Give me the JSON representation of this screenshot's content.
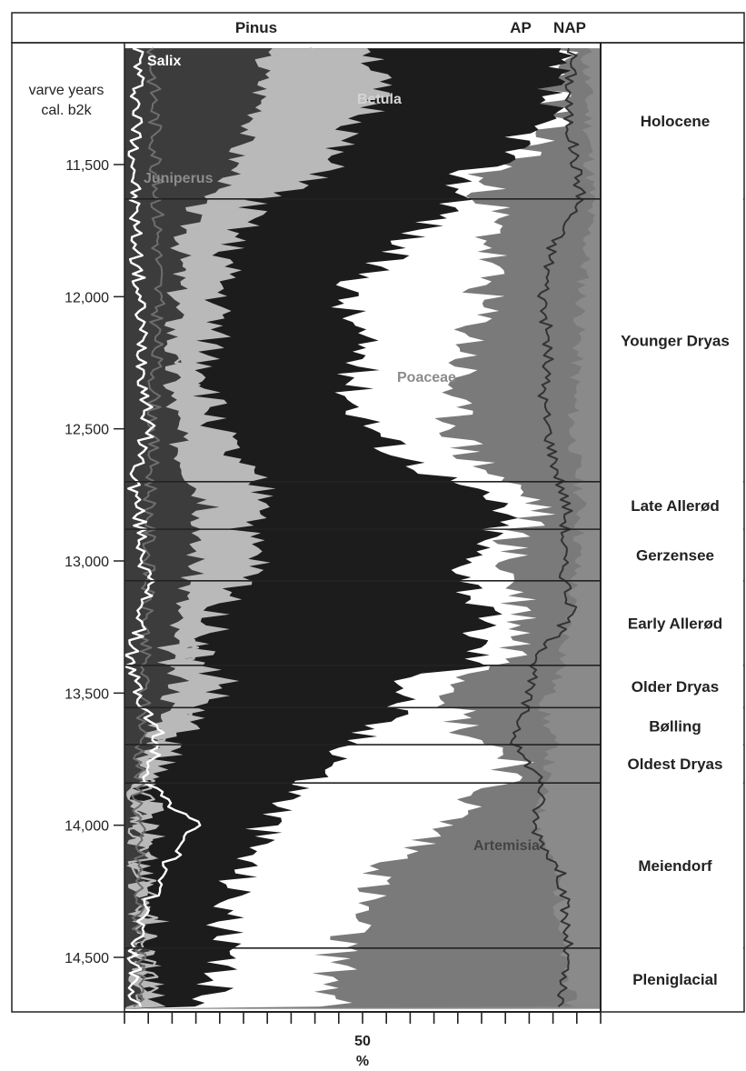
{
  "chart_data": {
    "type": "area",
    "header": {
      "left": "Pinus",
      "ap": "AP",
      "nap": "NAP"
    },
    "y_axis_label_line1": "varve years",
    "y_axis_label_line2": "cal. b2k",
    "y_ticks": [
      {
        "value": 11500,
        "label": "11,500"
      },
      {
        "value": 12000,
        "label": "12,000"
      },
      {
        "value": 12500,
        "label": "12,500"
      },
      {
        "value": 13000,
        "label": "13,000"
      },
      {
        "value": 13500,
        "label": "13,500"
      },
      {
        "value": 14000,
        "label": "14,000"
      },
      {
        "value": 14500,
        "label": "14,500"
      }
    ],
    "ylim": [
      11040,
      14700
    ],
    "x_axis": {
      "min": 0,
      "max": 100,
      "tick_step": 5,
      "label_value": 50,
      "label": "50",
      "unit": "%"
    },
    "taxon_labels": {
      "salix": "Salix",
      "betula": "Betula",
      "juniperus": "Juniperus",
      "poaceae": "Poaceae",
      "artemisia": "Artemisia"
    },
    "zones": [
      {
        "name": "Holocene",
        "top": 11040,
        "bottom": 11630
      },
      {
        "name": "Younger Dryas",
        "top": 11630,
        "bottom": 12700
      },
      {
        "name": "Late Allerød",
        "top": 12700,
        "bottom": 12880
      },
      {
        "name": "Gerzensee",
        "top": 12880,
        "bottom": 13075
      },
      {
        "name": "Early Allerød",
        "top": 13075,
        "bottom": 13395
      },
      {
        "name": "Older Dryas",
        "top": 13395,
        "bottom": 13555
      },
      {
        "name": "Bølling",
        "top": 13555,
        "bottom": 13695
      },
      {
        "name": "Oldest Dryas",
        "top": 13695,
        "bottom": 13840
      },
      {
        "name": "Meiendorf",
        "top": 13840,
        "bottom": 14465
      },
      {
        "name": "Pleniglacial",
        "top": 14465,
        "bottom": 14700
      }
    ],
    "series": [
      {
        "name": "Pinus",
        "color": "#1c1c1c",
        "profile": [
          [
            11120,
            90
          ],
          [
            11300,
            88
          ],
          [
            11450,
            82
          ],
          [
            11550,
            70
          ],
          [
            11630,
            72
          ],
          [
            11800,
            58
          ],
          [
            12000,
            46
          ],
          [
            12200,
            50
          ],
          [
            12400,
            48
          ],
          [
            12600,
            58
          ],
          [
            12800,
            80
          ],
          [
            12880,
            78
          ],
          [
            13000,
            72
          ],
          [
            13200,
            75
          ],
          [
            13395,
            74
          ],
          [
            13450,
            60
          ],
          [
            13555,
            58
          ],
          [
            13650,
            50
          ],
          [
            13760,
            46
          ],
          [
            13840,
            38
          ],
          [
            14000,
            30
          ],
          [
            14200,
            24
          ],
          [
            14465,
            20
          ],
          [
            14700,
            18
          ]
        ]
      },
      {
        "name": "Betula",
        "color": "#b9b9b9",
        "profile": [
          [
            11120,
            53
          ],
          [
            11300,
            52
          ],
          [
            11450,
            43
          ],
          [
            11550,
            42
          ],
          [
            11630,
            28
          ],
          [
            11800,
            22
          ],
          [
            12000,
            20
          ],
          [
            12200,
            18
          ],
          [
            12400,
            18
          ],
          [
            12600,
            22
          ],
          [
            12800,
            32
          ],
          [
            12880,
            25
          ],
          [
            13000,
            28
          ],
          [
            13200,
            20
          ],
          [
            13395,
            15
          ],
          [
            13450,
            22
          ],
          [
            13555,
            16
          ],
          [
            13650,
            12
          ],
          [
            13760,
            8
          ],
          [
            13840,
            5
          ],
          [
            14000,
            5
          ],
          [
            14200,
            5
          ],
          [
            14465,
            6
          ],
          [
            14700,
            5
          ]
        ]
      },
      {
        "name": "Juniperus",
        "color": "#404040",
        "profile": [
          [
            11120,
            6
          ],
          [
            11630,
            7
          ],
          [
            12000,
            7
          ],
          [
            12500,
            6
          ],
          [
            13000,
            5
          ],
          [
            13395,
            4
          ],
          [
            13555,
            4
          ],
          [
            13840,
            3
          ],
          [
            14465,
            3
          ],
          [
            14700,
            3
          ]
        ]
      },
      {
        "name": "Salix",
        "color": "#ffffff",
        "profile": [
          [
            11120,
            3
          ],
          [
            11630,
            2
          ],
          [
            12000,
            3
          ],
          [
            12500,
            5
          ],
          [
            12700,
            2
          ],
          [
            13100,
            5
          ],
          [
            13395,
            1
          ],
          [
            13555,
            4
          ],
          [
            13650,
            7
          ],
          [
            13840,
            5
          ],
          [
            14000,
            15
          ],
          [
            14200,
            7
          ],
          [
            14465,
            2
          ],
          [
            14700,
            2
          ]
        ]
      },
      {
        "name": "Poaceae",
        "color": "#ffffff",
        "profile": [
          [
            11120,
            91
          ],
          [
            11300,
            90
          ],
          [
            11450,
            86
          ],
          [
            11550,
            74
          ],
          [
            11630,
            77
          ],
          [
            11800,
            77
          ],
          [
            12000,
            75
          ],
          [
            12200,
            72
          ],
          [
            12400,
            68
          ],
          [
            12600,
            72
          ],
          [
            12800,
            88
          ],
          [
            12880,
            83
          ],
          [
            13000,
            80
          ],
          [
            13200,
            84
          ],
          [
            13395,
            82
          ],
          [
            13450,
            72
          ],
          [
            13555,
            70
          ],
          [
            13650,
            72
          ],
          [
            13760,
            84
          ],
          [
            13840,
            78
          ],
          [
            14000,
            67
          ],
          [
            14200,
            53
          ],
          [
            14465,
            45
          ],
          [
            14700,
            43
          ]
        ]
      },
      {
        "name": "Artemisia",
        "color": "#7a7a7a",
        "profile": [
          [
            11120,
            97
          ],
          [
            11630,
            98
          ],
          [
            12000,
            96
          ],
          [
            12500,
            94
          ],
          [
            12800,
            96
          ],
          [
            13000,
            95
          ],
          [
            13395,
            92
          ],
          [
            13555,
            88
          ],
          [
            13700,
            90
          ],
          [
            13840,
            88
          ],
          [
            14000,
            87
          ],
          [
            14200,
            91
          ],
          [
            14465,
            92
          ],
          [
            14700,
            94
          ]
        ]
      },
      {
        "name": "AP/NAP",
        "color": "#333333",
        "profile": [
          [
            11120,
            94
          ],
          [
            11300,
            93
          ],
          [
            11630,
            96
          ],
          [
            11800,
            90
          ],
          [
            12000,
            88
          ],
          [
            12200,
            89
          ],
          [
            12400,
            88
          ],
          [
            12600,
            90
          ],
          [
            12800,
            93
          ],
          [
            13000,
            92
          ],
          [
            13200,
            94
          ],
          [
            13395,
            86
          ],
          [
            13555,
            84
          ],
          [
            13700,
            82
          ],
          [
            13840,
            88
          ],
          [
            14000,
            86
          ],
          [
            14200,
            92
          ],
          [
            14465,
            93
          ],
          [
            14700,
            91
          ]
        ]
      }
    ]
  }
}
